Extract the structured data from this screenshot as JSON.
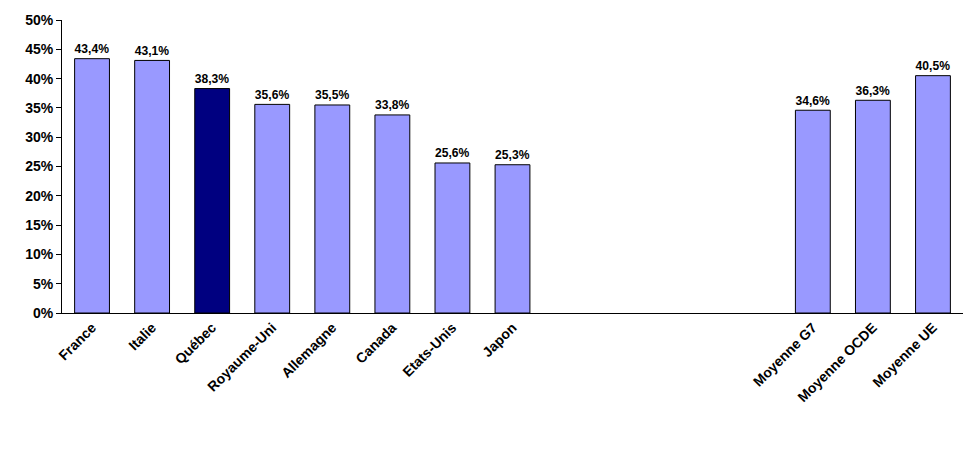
{
  "chart_data": {
    "type": "bar",
    "categories": [
      "France",
      "Italie",
      "Québec",
      "Royaume-Uni",
      "Allemagne",
      "Canada",
      "Etats-Unis",
      "Japon",
      null,
      null,
      null,
      null,
      "Moyenne G7",
      "Moyenne OCDE",
      "Moyenne UE"
    ],
    "values": [
      43.4,
      43.1,
      38.3,
      35.6,
      35.5,
      33.8,
      25.6,
      25.3,
      null,
      null,
      null,
      null,
      34.6,
      36.3,
      40.5
    ],
    "value_labels": [
      "43,4%",
      "43,1%",
      "38,3%",
      "35,6%",
      "35,5%",
      "33,8%",
      "25,6%",
      "25,3%",
      null,
      null,
      null,
      null,
      "34,6%",
      "36,3%",
      "40,5%"
    ],
    "colors": [
      "#9999ff",
      "#9999ff",
      "#000080",
      "#9999ff",
      "#9999ff",
      "#9999ff",
      "#9999ff",
      "#9999ff",
      null,
      null,
      null,
      null,
      "#9999ff",
      "#9999ff",
      "#9999ff"
    ],
    "data_labels": true,
    "grid": false,
    "ylim": [
      0,
      50
    ],
    "yticks": [
      {
        "value": 0,
        "label": "0%"
      },
      {
        "value": 5,
        "label": "5%"
      },
      {
        "value": 10,
        "label": "10%"
      },
      {
        "value": 15,
        "label": "15%"
      },
      {
        "value": 20,
        "label": "20%"
      },
      {
        "value": 25,
        "label": "25%"
      },
      {
        "value": 30,
        "label": "30%"
      },
      {
        "value": 35,
        "label": "35%"
      },
      {
        "value": 40,
        "label": "40%"
      },
      {
        "value": 45,
        "label": "45%"
      },
      {
        "value": 50,
        "label": "50%"
      }
    ]
  }
}
